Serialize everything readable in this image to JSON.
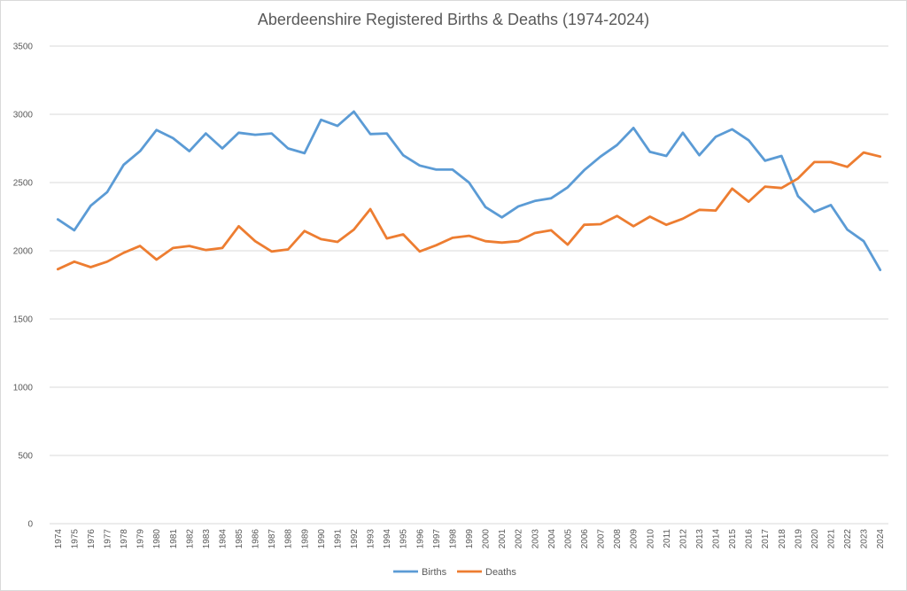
{
  "chart_data": {
    "type": "line",
    "title": "Aberdeenshire Registered Births & Deaths  (1974-2024)",
    "xlabel": "",
    "ylabel": "",
    "ylim": [
      0,
      3500
    ],
    "yticks": [
      0,
      500,
      1000,
      1500,
      2000,
      2500,
      3000,
      3500
    ],
    "grid": true,
    "legend_position": "bottom",
    "categories": [
      "1974",
      "1975",
      "1976",
      "1977",
      "1978",
      "1979",
      "1980",
      "1981",
      "1982",
      "1983",
      "1984",
      "1985",
      "1986",
      "1987",
      "1988",
      "1989",
      "1990",
      "1991",
      "1992",
      "1993",
      "1994",
      "1995",
      "1996",
      "1997",
      "1998",
      "1999",
      "2000",
      "2001",
      "2002",
      "2003",
      "2004",
      "2005",
      "2006",
      "2007",
      "2008",
      "2009",
      "2010",
      "2011",
      "2012",
      "2013",
      "2014",
      "2015",
      "2016",
      "2017",
      "2018",
      "2019",
      "2020",
      "2021",
      "2022",
      "2023",
      "2024"
    ],
    "series": [
      {
        "name": "Births",
        "color": "#5b9bd5",
        "values": [
          2230,
          2150,
          2330,
          2430,
          2630,
          2730,
          2885,
          2825,
          2730,
          2860,
          2750,
          2865,
          2850,
          2860,
          2750,
          2715,
          2960,
          2915,
          3020,
          2855,
          2860,
          2700,
          2625,
          2595,
          2595,
          2500,
          2320,
          2245,
          2325,
          2365,
          2385,
          2465,
          2590,
          2690,
          2775,
          2900,
          2725,
          2695,
          2865,
          2700,
          2835,
          2890,
          2810,
          2660,
          2695,
          2400,
          2285,
          2335,
          2155,
          2070,
          1860
        ]
      },
      {
        "name": "Deaths",
        "color": "#ed7d31",
        "values": [
          1865,
          1920,
          1880,
          1920,
          1985,
          2035,
          1935,
          2020,
          2035,
          2005,
          2020,
          2180,
          2070,
          1995,
          2010,
          2145,
          2085,
          2065,
          2155,
          2305,
          2090,
          2120,
          1995,
          2040,
          2095,
          2110,
          2070,
          2060,
          2070,
          2130,
          2150,
          2045,
          2190,
          2195,
          2255,
          2180,
          2250,
          2190,
          2235,
          2300,
          2295,
          2455,
          2360,
          2470,
          2460,
          2530,
          2650,
          2650,
          2615,
          2720,
          2690
        ]
      }
    ]
  }
}
